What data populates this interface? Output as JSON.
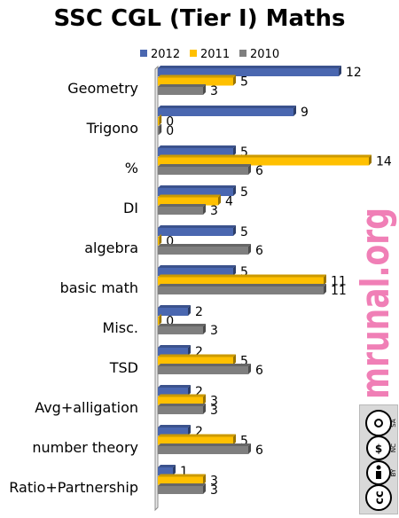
{
  "chart_data": {
    "type": "bar",
    "orientation": "horizontal",
    "title": "SSC CGL (Tier I) Maths",
    "categories": [
      "Geometry",
      "Trigono",
      "%",
      "DI",
      "algebra",
      "basic math",
      "Misc.",
      "TSD",
      "Avg+alligation",
      "number theory",
      "Ratio+Partnership"
    ],
    "series": [
      {
        "name": "2012",
        "color": "#4a67b0",
        "values": [
          12,
          9,
          5,
          5,
          5,
          5,
          2,
          2,
          2,
          2,
          1
        ]
      },
      {
        "name": "2011",
        "color": "#ffc000",
        "values": [
          5,
          0,
          14,
          4,
          0,
          11,
          0,
          5,
          3,
          5,
          3
        ]
      },
      {
        "name": "2010",
        "color": "#7f7f7f",
        "values": [
          3,
          0,
          6,
          3,
          6,
          11,
          3,
          6,
          3,
          6,
          3
        ]
      }
    ],
    "xlim": [
      0,
      14
    ],
    "legend_position": "top",
    "grid": false,
    "data_labels": true
  },
  "watermark": {
    "text": "mrunal.org",
    "color": "#f07fb6"
  },
  "license_badge": {
    "text": [
      "cc",
      "BY",
      "NC",
      "SA"
    ]
  }
}
